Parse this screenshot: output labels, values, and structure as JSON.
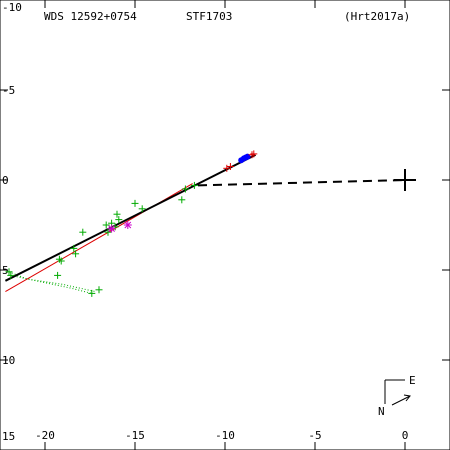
{
  "header": {
    "wds_id": "WDS 12592+0754",
    "discoverer": "STF1703",
    "reference": "(Hrt2017a)"
  },
  "compass": {
    "east_label": "E",
    "north_label": "N"
  },
  "colors": {
    "axes": "#000000",
    "orbit": "#000000",
    "reference_orbit": "#dd0000",
    "micrometer": "#00aa00",
    "photographic": "#cc00cc",
    "speckle": "#0000ff",
    "recent": "#dd0000"
  },
  "chart_data": {
    "type": "scatter",
    "title": "",
    "xlabel": "",
    "ylabel": "",
    "xlim": [
      -22.5,
      2.5
    ],
    "ylim": [
      15,
      -10
    ],
    "x_ticks": [
      -20,
      -15,
      -10,
      -5,
      0
    ],
    "x_tick_labels": [
      "-20",
      "-15",
      "-10",
      "-5",
      "0"
    ],
    "y_ticks": [
      -10,
      -5,
      0,
      5,
      10,
      15
    ],
    "y_tick_labels": [
      "-10",
      "-5",
      "0",
      "5",
      "10",
      "15"
    ],
    "primary": [
      0,
      0
    ],
    "orbit_line": [
      [
        -22.2,
        5.6
      ],
      [
        -8.3,
        -1.4
      ]
    ],
    "reference_orbit_line": [
      [
        -22.2,
        6.2
      ],
      [
        -11.8,
        0.2
      ]
    ],
    "node_line": [
      [
        -11.5,
        0.3
      ],
      [
        0,
        0
      ]
    ],
    "series": [
      {
        "kind": "micrometer",
        "marker": "plus",
        "points": [
          [
            -22.0,
            5.1
          ],
          [
            -21.9,
            5.3
          ],
          [
            -19.3,
            5.3
          ],
          [
            -19.2,
            4.4
          ],
          [
            -19.1,
            4.5
          ],
          [
            -18.4,
            3.8
          ],
          [
            -18.3,
            4.1
          ],
          [
            -17.9,
            2.9
          ],
          [
            -17.4,
            6.3
          ],
          [
            -17.0,
            6.1
          ],
          [
            -16.6,
            2.5
          ],
          [
            -16.5,
            2.9
          ],
          [
            -16.3,
            2.4
          ],
          [
            -16.1,
            2.6
          ],
          [
            -16.0,
            1.9
          ],
          [
            -15.9,
            2.2
          ],
          [
            -15.0,
            1.3
          ],
          [
            -14.6,
            1.6
          ],
          [
            -12.4,
            1.1
          ],
          [
            -12.2,
            0.5
          ],
          [
            -11.7,
            0.3
          ]
        ]
      },
      {
        "kind": "photographic",
        "marker": "asterisk",
        "points": [
          [
            -15.4,
            2.5
          ],
          [
            -16.3,
            2.7
          ]
        ]
      },
      {
        "kind": "speckle",
        "marker": "dot",
        "points": [
          [
            -9.1,
            -1.1
          ],
          [
            -8.95,
            -1.2
          ],
          [
            -8.85,
            -1.25
          ],
          [
            -8.75,
            -1.3
          ]
        ]
      },
      {
        "kind": "recent",
        "marker": "plus",
        "points": [
          [
            -9.9,
            -0.65
          ],
          [
            -9.7,
            -0.75
          ],
          [
            -8.5,
            -1.4
          ],
          [
            -8.4,
            -1.45
          ]
        ]
      }
    ],
    "micrometer_residual_lines": [
      [
        [
          -22.0,
          5.1
        ],
        [
          -21.0,
          5.5
        ],
        [
          -19.0,
          5.8
        ],
        [
          -17.2,
          6.2
        ]
      ],
      [
        [
          -21.9,
          5.3
        ],
        [
          -20.5,
          5.6
        ],
        [
          -18.6,
          6.0
        ],
        [
          -17.4,
          6.3
        ]
      ]
    ]
  }
}
